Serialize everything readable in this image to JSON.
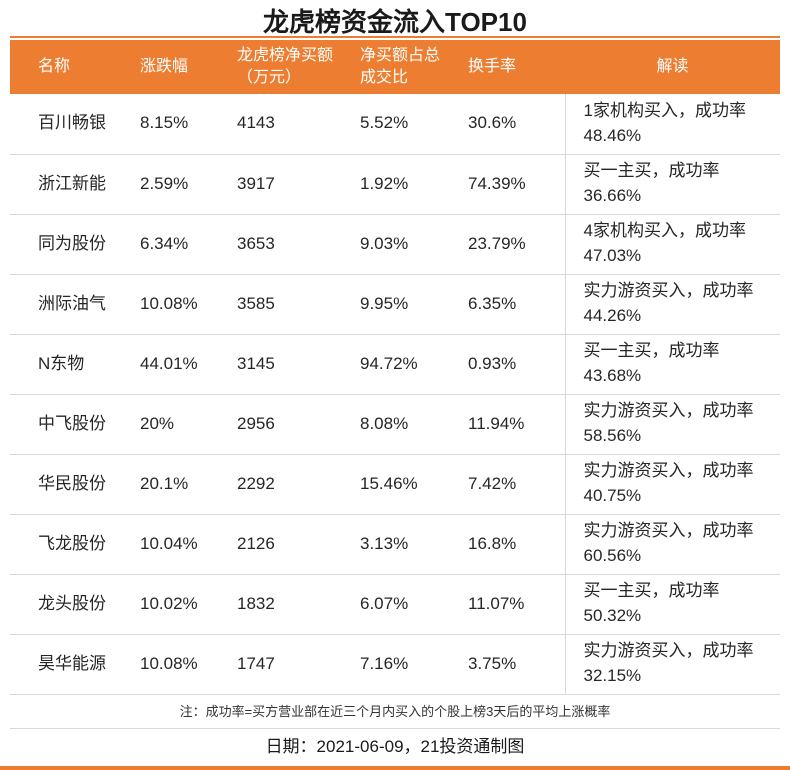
{
  "title": "龙虎榜资金流入TOP10",
  "colors": {
    "accent": "#ED7D31",
    "header_bg": "#ED7D31",
    "header_text": "#FFFFFF",
    "row_border": "#D9D9D9",
    "body_text": "#262626"
  },
  "chart_data": {
    "type": "table",
    "title": "龙虎榜资金流入TOP10",
    "columns": [
      "名称",
      "涨跌幅",
      "龙虎榜净买额（万元）",
      "净买额占总成交比",
      "换手率",
      "解读"
    ],
    "rows": [
      [
        "百川畅银",
        "8.15%",
        "4143",
        "5.52%",
        "30.6%",
        "1家机构买入，成功率48.46%"
      ],
      [
        "浙江新能",
        "2.59%",
        "3917",
        "1.92%",
        "74.39%",
        "买一主买，成功率36.66%"
      ],
      [
        "同为股份",
        "6.34%",
        "3653",
        "9.03%",
        "23.79%",
        "4家机构买入，成功率47.03%"
      ],
      [
        "洲际油气",
        "10.08%",
        "3585",
        "9.95%",
        "6.35%",
        "实力游资买入，成功率44.26%"
      ],
      [
        "N东物",
        "44.01%",
        "3145",
        "94.72%",
        "0.93%",
        "买一主买，成功率43.68%"
      ],
      [
        "中飞股份",
        "20%",
        "2956",
        "8.08%",
        "11.94%",
        "实力游资买入，成功率58.56%"
      ],
      [
        "华民股份",
        "20.1%",
        "2292",
        "15.46%",
        "7.42%",
        "实力游资买入，成功率40.75%"
      ],
      [
        "飞龙股份",
        "10.04%",
        "2126",
        "3.13%",
        "16.8%",
        "实力游资买入，成功率60.56%"
      ],
      [
        "龙头股份",
        "10.02%",
        "1832",
        "6.07%",
        "11.07%",
        "买一主买，成功率50.32%"
      ],
      [
        "昊华能源",
        "10.08%",
        "1747",
        "7.16%",
        "3.75%",
        "实力游资买入，成功率32.15%"
      ]
    ]
  },
  "footer": {
    "note": "注：成功率=买方营业部在近三个月内买入的个股上榜3天后的平均上涨概率",
    "date_line": "日期：2021-06-09，21投资通制图"
  }
}
